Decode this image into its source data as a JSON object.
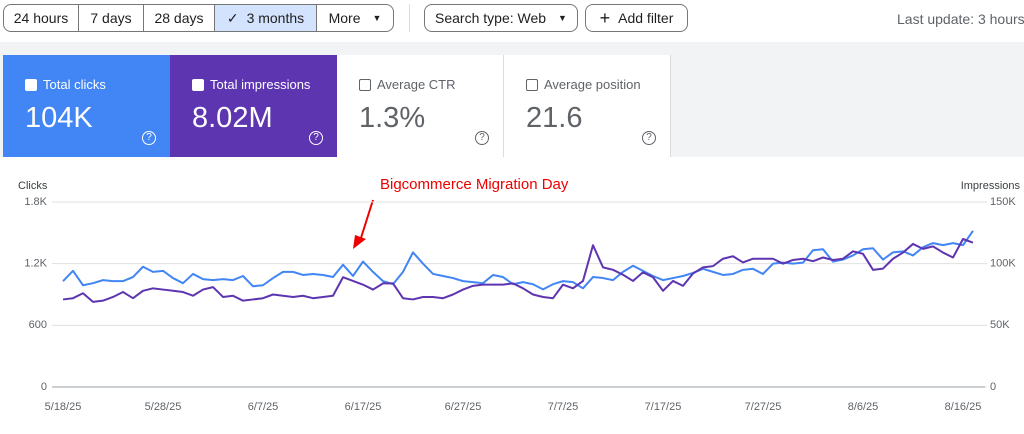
{
  "toolbar": {
    "date_ranges": [
      "24 hours",
      "7 days",
      "28 days",
      "3 months"
    ],
    "more": "More",
    "search_type": "Search type: Web",
    "add_filter": "Add filter",
    "last_update": "Last update: 3 hours"
  },
  "metrics": [
    {
      "label": "Total clicks",
      "value": "104K"
    },
    {
      "label": "Total impressions",
      "value": "8.02M"
    },
    {
      "label": "Average CTR",
      "value": "1.3%"
    },
    {
      "label": "Average position",
      "value": "21.6"
    }
  ],
  "chart_data": {
    "type": "line",
    "annotation": "Bigcommerce Migration Day",
    "y_label": "Clicks",
    "y2_label": "Impressions",
    "x": [
      "5/18/25",
      "5/19/25",
      "5/20/25",
      "5/21/25",
      "5/22/25",
      "5/23/25",
      "5/24/25",
      "5/25/25",
      "5/26/25",
      "5/27/25",
      "5/28/25",
      "5/29/25",
      "5/30/25",
      "5/31/25",
      "6/1/25",
      "6/2/25",
      "6/3/25",
      "6/4/25",
      "6/5/25",
      "6/6/25",
      "6/7/25",
      "6/8/25",
      "6/9/25",
      "6/10/25",
      "6/11/25",
      "6/12/25",
      "6/13/25",
      "6/14/25",
      "6/15/25",
      "6/16/25",
      "6/17/25",
      "6/18/25",
      "6/19/25",
      "6/20/25",
      "6/21/25",
      "6/22/25",
      "6/23/25",
      "6/24/25",
      "6/25/25",
      "6/26/25",
      "6/27/25",
      "6/28/25",
      "6/29/25",
      "6/30/25",
      "7/1/25",
      "7/2/25",
      "7/3/25",
      "7/4/25",
      "7/5/25",
      "7/6/25",
      "7/7/25",
      "7/8/25",
      "7/9/25",
      "7/10/25",
      "7/11/25",
      "7/12/25",
      "7/13/25",
      "7/14/25",
      "7/15/25",
      "7/16/25",
      "7/17/25",
      "7/18/25",
      "7/19/25",
      "7/20/25",
      "7/21/25",
      "7/22/25",
      "7/23/25",
      "7/24/25",
      "7/25/25",
      "7/26/25",
      "7/27/25",
      "7/28/25",
      "7/29/25",
      "7/30/25",
      "7/31/25",
      "8/1/25",
      "8/2/25",
      "8/3/25",
      "8/4/25",
      "8/5/25",
      "8/6/25",
      "8/7/25",
      "8/8/25",
      "8/9/25",
      "8/10/25",
      "8/11/25",
      "8/12/25",
      "8/13/25",
      "8/14/25",
      "8/15/25",
      "8/16/25",
      "8/17/25"
    ],
    "xticks": [
      "5/18/25",
      "5/28/25",
      "6/7/25",
      "6/17/25",
      "6/27/25",
      "7/7/25",
      "7/17/25",
      "7/27/25",
      "8/6/25",
      "8/16/25"
    ],
    "ylim": [
      0,
      1800
    ],
    "yticks": [
      0,
      600,
      {
        "value": 1200,
        "label": "1.2K"
      },
      {
        "value": 1800,
        "label": "1.8K"
      }
    ],
    "y2lim": [
      0,
      150000
    ],
    "y2ticks": [
      0,
      {
        "value": 50000,
        "label": "50K"
      },
      {
        "value": 100000,
        "label": "100K"
      },
      {
        "value": 150000,
        "label": "150K"
      }
    ],
    "grid": true,
    "series": [
      {
        "name": "Total clicks",
        "color": "#4285f4",
        "values": [
          1030,
          1130,
          990,
          1010,
          1040,
          1030,
          1030,
          1070,
          1170,
          1120,
          1130,
          1060,
          1010,
          1100,
          1050,
          1040,
          1050,
          1040,
          1080,
          980,
          990,
          1060,
          1120,
          1120,
          1090,
          1100,
          1090,
          1070,
          1190,
          1080,
          1220,
          1120,
          1030,
          1000,
          1120,
          1310,
          1200,
          1100,
          1080,
          1060,
          1030,
          1020,
          1010,
          1090,
          1070,
          1000,
          1020,
          1000,
          950,
          1000,
          1030,
          1020,
          960,
          1070,
          1060,
          1040,
          1120,
          1180,
          1130,
          1080,
          1040,
          1060,
          1080,
          1110,
          1150,
          1120,
          1090,
          1100,
          1140,
          1150,
          1100,
          1200,
          1210,
          1200,
          1210,
          1330,
          1340,
          1220,
          1240,
          1280,
          1340,
          1350,
          1240,
          1310,
          1320,
          1280,
          1360,
          1400,
          1380,
          1400,
          1380,
          1520
        ]
      },
      {
        "name": "Total impressions",
        "color": "#5e35b1",
        "axis": "y2",
        "values": [
          71000,
          72000,
          76000,
          69000,
          70000,
          73000,
          77000,
          72000,
          78000,
          80000,
          79000,
          78000,
          77000,
          74000,
          79000,
          81000,
          73000,
          74000,
          70000,
          71000,
          72000,
          75000,
          74000,
          73000,
          74000,
          72000,
          73000,
          74000,
          89000,
          86000,
          83000,
          79000,
          84000,
          84000,
          72000,
          71000,
          73000,
          73000,
          72000,
          75000,
          79000,
          82000,
          83000,
          83000,
          83000,
          84000,
          80000,
          75000,
          73000,
          72000,
          83000,
          80000,
          86000,
          115000,
          97000,
          95000,
          91000,
          86000,
          93000,
          89000,
          78000,
          86000,
          82000,
          92000,
          97000,
          98000,
          104000,
          106000,
          101000,
          104000,
          104000,
          104000,
          100000,
          103000,
          104000,
          102000,
          105000,
          103000,
          104000,
          110000,
          108000,
          95000,
          96000,
          104000,
          109000,
          116000,
          112000,
          114000,
          109000,
          105000,
          120000,
          117000
        ]
      }
    ]
  }
}
